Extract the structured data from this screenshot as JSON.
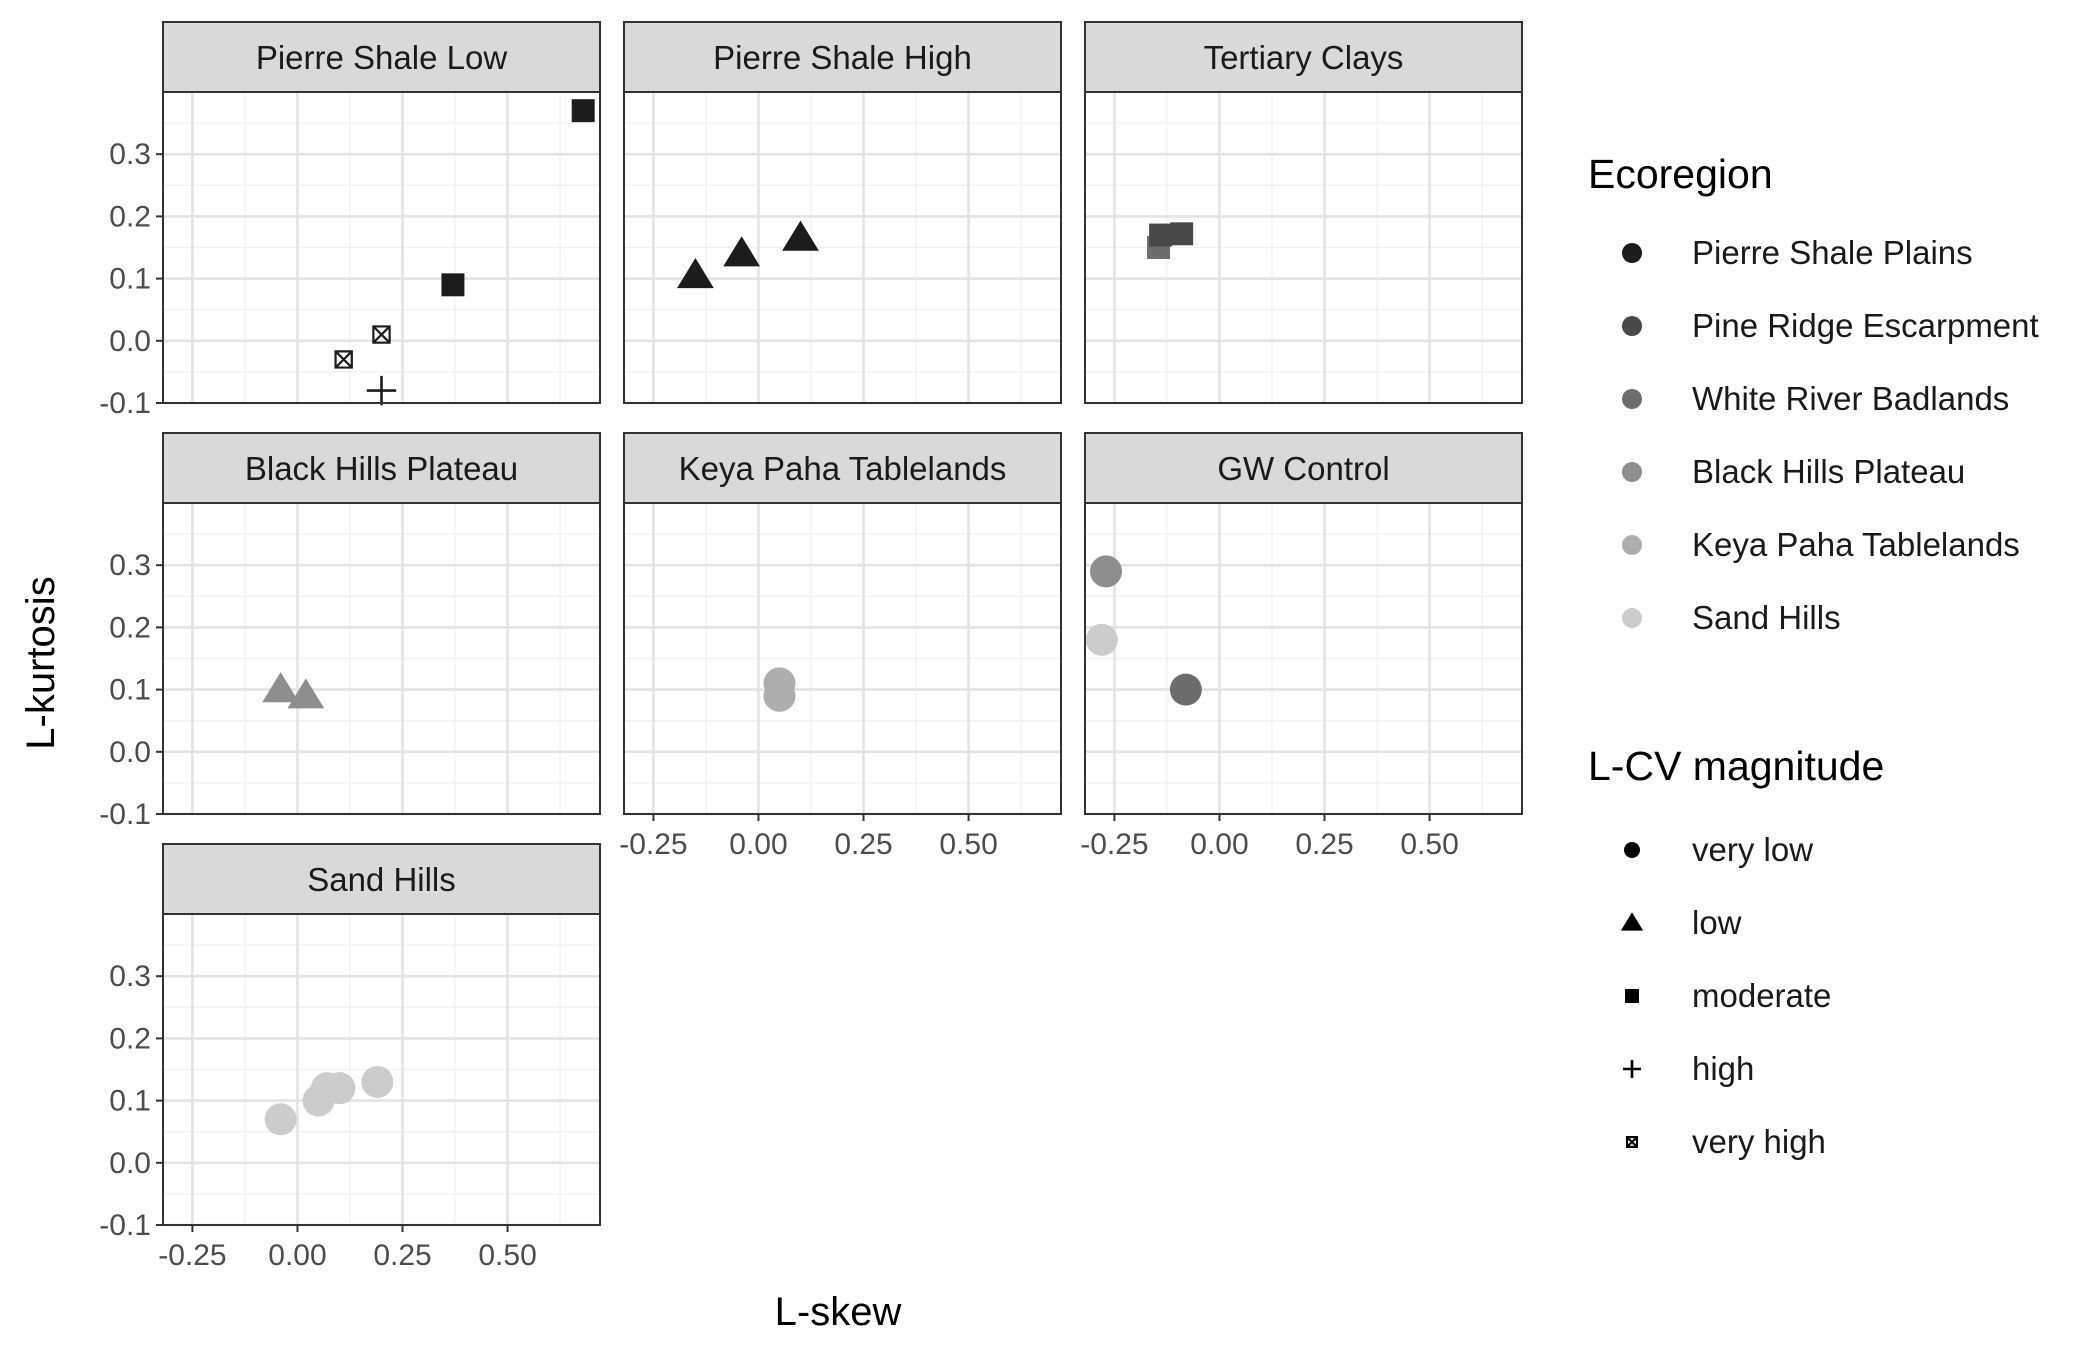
{
  "chart_data": {
    "type": "scatter",
    "xlabel": "L-skew",
    "ylabel": "L-kurtosis",
    "xlim": [
      -0.32,
      0.72
    ],
    "ylim": [
      -0.1,
      0.4
    ],
    "x_ticks": [
      -0.25,
      0.0,
      0.25,
      0.5
    ],
    "x_tick_labels": [
      "-0.25",
      "0.00",
      "0.25",
      "0.50"
    ],
    "y_ticks": [
      -0.1,
      0.0,
      0.1,
      0.2,
      0.3
    ],
    "y_tick_labels": [
      "-0.1",
      "0.0",
      "0.1",
      "0.2",
      "0.3"
    ],
    "grid": true,
    "legend_position": "right",
    "ecoregion_legend": {
      "title": "Ecoregion",
      "items": [
        {
          "label": "Pierre Shale Plains",
          "color": "#1c1c1c"
        },
        {
          "label": "Pine Ridge Escarpment",
          "color": "#484848"
        },
        {
          "label": "White River Badlands",
          "color": "#6d6d6d"
        },
        {
          "label": "Black Hills Plateau",
          "color": "#8e8e8e"
        },
        {
          "label": "Keya Paha Tablelands",
          "color": "#aeaeae"
        },
        {
          "label": "Sand Hills",
          "color": "#cccccc"
        }
      ]
    },
    "shape_legend": {
      "title": "L-CV magnitude",
      "items": [
        {
          "label": "very low",
          "shape": "circle"
        },
        {
          "label": "low",
          "shape": "triangle"
        },
        {
          "label": "moderate",
          "shape": "square"
        },
        {
          "label": "high",
          "shape": "plus"
        },
        {
          "label": "very high",
          "shape": "square-x"
        }
      ]
    },
    "panels": [
      {
        "title": "Pierre Shale Low",
        "points": [
          {
            "x": 0.68,
            "y": 0.37,
            "shape": "square",
            "color": "#1c1c1c"
          },
          {
            "x": 0.37,
            "y": 0.09,
            "shape": "square",
            "color": "#1c1c1c"
          },
          {
            "x": 0.2,
            "y": 0.01,
            "shape": "square-x",
            "color": "#1c1c1c"
          },
          {
            "x": 0.11,
            "y": -0.03,
            "shape": "square-x",
            "color": "#1c1c1c"
          },
          {
            "x": 0.2,
            "y": -0.08,
            "shape": "plus",
            "color": "#1c1c1c"
          }
        ]
      },
      {
        "title": "Pierre Shale High",
        "points": [
          {
            "x": 0.1,
            "y": 0.165,
            "shape": "triangle",
            "color": "#1c1c1c"
          },
          {
            "x": -0.04,
            "y": 0.14,
            "shape": "triangle",
            "color": "#1c1c1c"
          },
          {
            "x": -0.15,
            "y": 0.105,
            "shape": "triangle",
            "color": "#1c1c1c"
          }
        ]
      },
      {
        "title": "Tertiary Clays",
        "points": [
          {
            "x": -0.145,
            "y": 0.15,
            "shape": "square",
            "color": "#6d6d6d"
          },
          {
            "x": -0.14,
            "y": 0.17,
            "shape": "square",
            "color": "#484848"
          },
          {
            "x": -0.09,
            "y": 0.172,
            "shape": "square",
            "color": "#484848"
          }
        ]
      },
      {
        "title": "Black Hills Plateau",
        "points": [
          {
            "x": -0.04,
            "y": 0.1,
            "shape": "triangle",
            "color": "#8e8e8e"
          },
          {
            "x": 0.02,
            "y": 0.09,
            "shape": "triangle",
            "color": "#8e8e8e"
          }
        ]
      },
      {
        "title": "Keya Paha Tablelands",
        "points": [
          {
            "x": 0.05,
            "y": 0.11,
            "shape": "circle",
            "color": "#aeaeae"
          },
          {
            "x": 0.05,
            "y": 0.09,
            "shape": "circle",
            "color": "#aeaeae"
          }
        ]
      },
      {
        "title": "GW Control",
        "points": [
          {
            "x": -0.27,
            "y": 0.29,
            "shape": "circle",
            "color": "#8e8e8e"
          },
          {
            "x": -0.28,
            "y": 0.18,
            "shape": "circle",
            "color": "#cccccc"
          },
          {
            "x": -0.08,
            "y": 0.1,
            "shape": "circle",
            "color": "#6d6d6d"
          }
        ]
      },
      {
        "title": "Sand Hills",
        "points": [
          {
            "x": 0.19,
            "y": 0.13,
            "shape": "circle",
            "color": "#cccccc"
          },
          {
            "x": 0.1,
            "y": 0.12,
            "shape": "circle",
            "color": "#cccccc"
          },
          {
            "x": 0.07,
            "y": 0.12,
            "shape": "circle",
            "color": "#cccccc"
          },
          {
            "x": 0.05,
            "y": 0.1,
            "shape": "circle",
            "color": "#cccccc"
          },
          {
            "x": -0.04,
            "y": 0.07,
            "shape": "circle",
            "color": "#cccccc"
          }
        ]
      }
    ]
  }
}
